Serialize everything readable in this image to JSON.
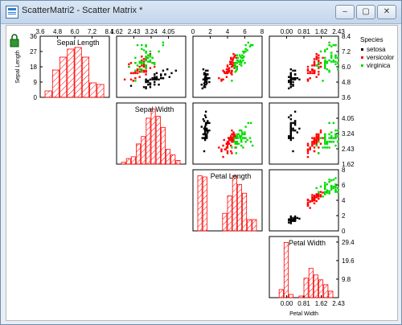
{
  "window": {
    "title": "ScatterMatri2 - Scatter Matrix *",
    "min_label": "–",
    "max_label": "▢",
    "close_label": "✕"
  },
  "icons": {
    "app": "scatter-matrix-icon",
    "lock": "lock-icon"
  },
  "colors": {
    "setosa": "#000000",
    "versicolor": "#ff0000",
    "virginica": "#00dd00",
    "hist": "#ff0000"
  },
  "chart_data": {
    "type": "scatter",
    "title": "",
    "variables": [
      {
        "name": "Sepal Length",
        "range": [
          3.6,
          8.4
        ],
        "ticks": [
          "3.6",
          "4.8",
          "6.0",
          "7.2",
          "8.4"
        ],
        "hist_ticks": [
          "0",
          "9",
          "18",
          "27",
          "36"
        ],
        "hist_max": 36,
        "hist_values": [
          4,
          17,
          25,
          30,
          31,
          25,
          9,
          8
        ]
      },
      {
        "name": "Sepal Width",
        "range": [
          1.62,
          4.86
        ],
        "ticks": [
          "1.62",
          "2.43",
          "3.24",
          "4.05"
        ],
        "hist_values": [
          1,
          3,
          4,
          11,
          15,
          25,
          30,
          26,
          20,
          8,
          5,
          2
        ]
      },
      {
        "name": "Petal Length",
        "range": [
          0,
          8
        ],
        "ticks": [
          "0",
          "2",
          "4",
          "6",
          "8"
        ],
        "hist_values": [
          44,
          43,
          0,
          0,
          0,
          14,
          28,
          44,
          37,
          30,
          9,
          9
        ]
      },
      {
        "name": "Petal Width",
        "range": [
          -0.81,
          2.43
        ],
        "ticks": [
          "0.00",
          "0.81",
          "1.62",
          "2.43"
        ],
        "right_ticks": [
          "9.8",
          "19.6",
          "29.4"
        ],
        "xlabel": "Petal Width",
        "hist_values": [
          0,
          5,
          34,
          2,
          0,
          1,
          12,
          18,
          14,
          11,
          8,
          4
        ]
      }
    ],
    "species": [
      {
        "name": "setosa",
        "color": "#000000",
        "points": [
          [
            5.1,
            3.5,
            1.4,
            0.2
          ],
          [
            4.9,
            3.0,
            1.4,
            0.2
          ],
          [
            4.7,
            3.2,
            1.3,
            0.2
          ],
          [
            4.6,
            3.1,
            1.5,
            0.2
          ],
          [
            5.0,
            3.6,
            1.4,
            0.2
          ],
          [
            5.4,
            3.9,
            1.7,
            0.4
          ],
          [
            4.6,
            3.4,
            1.4,
            0.3
          ],
          [
            5.0,
            3.4,
            1.5,
            0.2
          ],
          [
            4.4,
            2.9,
            1.4,
            0.2
          ],
          [
            4.9,
            3.1,
            1.5,
            0.1
          ],
          [
            5.4,
            3.7,
            1.5,
            0.2
          ],
          [
            4.8,
            3.4,
            1.6,
            0.2
          ],
          [
            4.8,
            3.0,
            1.4,
            0.1
          ],
          [
            4.3,
            3.0,
            1.1,
            0.1
          ],
          [
            5.8,
            4.0,
            1.2,
            0.2
          ],
          [
            5.7,
            4.4,
            1.5,
            0.4
          ],
          [
            5.4,
            3.9,
            1.3,
            0.4
          ],
          [
            5.1,
            3.5,
            1.4,
            0.3
          ],
          [
            5.7,
            3.8,
            1.7,
            0.3
          ],
          [
            5.1,
            3.8,
            1.5,
            0.3
          ],
          [
            5.4,
            3.4,
            1.7,
            0.2
          ],
          [
            5.1,
            3.7,
            1.5,
            0.4
          ],
          [
            4.6,
            3.6,
            1.0,
            0.2
          ],
          [
            5.1,
            3.3,
            1.7,
            0.5
          ],
          [
            4.8,
            3.4,
            1.9,
            0.2
          ],
          [
            5.0,
            3.0,
            1.6,
            0.2
          ],
          [
            5.0,
            3.4,
            1.6,
            0.4
          ],
          [
            5.2,
            3.5,
            1.5,
            0.2
          ],
          [
            5.2,
            3.4,
            1.4,
            0.2
          ],
          [
            4.7,
            3.2,
            1.6,
            0.2
          ],
          [
            4.8,
            3.1,
            1.6,
            0.2
          ],
          [
            5.4,
            3.4,
            1.5,
            0.4
          ],
          [
            5.2,
            4.1,
            1.5,
            0.1
          ],
          [
            5.5,
            4.2,
            1.4,
            0.2
          ],
          [
            4.9,
            3.1,
            1.5,
            0.2
          ],
          [
            5.0,
            3.2,
            1.2,
            0.2
          ],
          [
            5.5,
            3.5,
            1.3,
            0.2
          ],
          [
            4.4,
            3.0,
            1.3,
            0.2
          ],
          [
            5.1,
            3.4,
            1.5,
            0.2
          ],
          [
            5.0,
            3.5,
            1.3,
            0.3
          ],
          [
            4.5,
            2.3,
            1.3,
            0.3
          ],
          [
            4.4,
            3.2,
            1.3,
            0.2
          ],
          [
            5.0,
            3.5,
            1.6,
            0.6
          ],
          [
            5.1,
            3.8,
            1.9,
            0.4
          ],
          [
            4.8,
            3.0,
            1.4,
            0.3
          ],
          [
            5.1,
            3.8,
            1.6,
            0.2
          ],
          [
            4.6,
            3.2,
            1.4,
            0.2
          ],
          [
            5.3,
            3.7,
            1.5,
            0.2
          ],
          [
            5.0,
            3.3,
            1.4,
            0.2
          ]
        ]
      },
      {
        "name": "versicolor",
        "color": "#ff0000",
        "points": [
          [
            7.0,
            3.2,
            4.7,
            1.4
          ],
          [
            6.4,
            3.2,
            4.5,
            1.5
          ],
          [
            6.9,
            3.1,
            4.9,
            1.5
          ],
          [
            5.5,
            2.3,
            4.0,
            1.3
          ],
          [
            6.5,
            2.8,
            4.6,
            1.5
          ],
          [
            5.7,
            2.8,
            4.5,
            1.3
          ],
          [
            6.3,
            3.3,
            4.7,
            1.6
          ],
          [
            4.9,
            2.4,
            3.3,
            1.0
          ],
          [
            6.6,
            2.9,
            4.6,
            1.3
          ],
          [
            5.2,
            2.7,
            3.9,
            1.4
          ],
          [
            5.0,
            2.0,
            3.5,
            1.0
          ],
          [
            5.9,
            3.0,
            4.2,
            1.5
          ],
          [
            6.0,
            2.2,
            4.0,
            1.0
          ],
          [
            6.1,
            2.9,
            4.7,
            1.4
          ],
          [
            5.6,
            2.9,
            3.6,
            1.3
          ],
          [
            6.7,
            3.1,
            4.4,
            1.4
          ],
          [
            5.6,
            3.0,
            4.5,
            1.5
          ],
          [
            5.8,
            2.7,
            4.1,
            1.0
          ],
          [
            6.2,
            2.2,
            4.5,
            1.5
          ],
          [
            5.6,
            2.5,
            3.9,
            1.1
          ],
          [
            5.9,
            3.2,
            4.8,
            1.8
          ],
          [
            6.1,
            2.8,
            4.0,
            1.3
          ],
          [
            6.3,
            2.5,
            4.9,
            1.5
          ],
          [
            6.1,
            2.8,
            4.7,
            1.2
          ],
          [
            6.4,
            2.9,
            4.3,
            1.3
          ],
          [
            6.6,
            3.0,
            4.4,
            1.4
          ],
          [
            6.8,
            2.8,
            4.8,
            1.4
          ],
          [
            6.7,
            3.0,
            5.0,
            1.7
          ],
          [
            6.0,
            2.9,
            4.5,
            1.5
          ],
          [
            5.7,
            2.6,
            3.5,
            1.0
          ],
          [
            5.5,
            2.4,
            3.8,
            1.1
          ],
          [
            5.5,
            2.4,
            3.7,
            1.0
          ],
          [
            5.8,
            2.7,
            3.9,
            1.2
          ],
          [
            6.0,
            2.7,
            5.1,
            1.6
          ],
          [
            5.4,
            3.0,
            4.5,
            1.5
          ],
          [
            6.0,
            3.4,
            4.5,
            1.6
          ],
          [
            6.7,
            3.1,
            4.7,
            1.5
          ],
          [
            6.3,
            2.3,
            4.4,
            1.3
          ],
          [
            5.6,
            3.0,
            4.1,
            1.3
          ],
          [
            5.5,
            2.5,
            4.0,
            1.3
          ],
          [
            5.5,
            2.6,
            4.4,
            1.2
          ],
          [
            6.1,
            3.0,
            4.6,
            1.4
          ],
          [
            5.8,
            2.6,
            4.0,
            1.2
          ],
          [
            5.0,
            2.3,
            3.3,
            1.0
          ],
          [
            5.6,
            2.7,
            4.2,
            1.3
          ],
          [
            5.7,
            3.0,
            4.2,
            1.2
          ],
          [
            5.7,
            2.9,
            4.2,
            1.3
          ],
          [
            6.2,
            2.9,
            4.3,
            1.3
          ],
          [
            5.1,
            2.5,
            3.0,
            1.1
          ],
          [
            5.7,
            2.8,
            4.1,
            1.3
          ]
        ]
      },
      {
        "name": "virginica",
        "color": "#00dd00",
        "points": [
          [
            6.3,
            3.3,
            6.0,
            2.5
          ],
          [
            5.8,
            2.7,
            5.1,
            1.9
          ],
          [
            7.1,
            3.0,
            5.9,
            2.1
          ],
          [
            6.3,
            2.9,
            5.6,
            1.8
          ],
          [
            6.5,
            3.0,
            5.8,
            2.2
          ],
          [
            7.6,
            3.0,
            6.6,
            2.1
          ],
          [
            4.9,
            2.5,
            4.5,
            1.7
          ],
          [
            7.3,
            2.9,
            6.3,
            1.8
          ],
          [
            6.7,
            2.5,
            5.8,
            1.8
          ],
          [
            7.2,
            3.6,
            6.1,
            2.5
          ],
          [
            6.5,
            3.2,
            5.1,
            2.0
          ],
          [
            6.4,
            2.7,
            5.3,
            1.9
          ],
          [
            6.8,
            3.0,
            5.5,
            2.1
          ],
          [
            5.7,
            2.5,
            5.0,
            2.0
          ],
          [
            5.8,
            2.8,
            5.1,
            2.4
          ],
          [
            6.4,
            3.2,
            5.3,
            2.3
          ],
          [
            6.5,
            3.0,
            5.5,
            1.8
          ],
          [
            7.7,
            3.8,
            6.7,
            2.2
          ],
          [
            7.7,
            2.6,
            6.9,
            2.3
          ],
          [
            6.0,
            2.2,
            5.0,
            1.5
          ],
          [
            6.9,
            3.2,
            5.7,
            2.3
          ],
          [
            5.6,
            2.8,
            4.9,
            2.0
          ],
          [
            7.7,
            2.8,
            6.7,
            2.0
          ],
          [
            6.3,
            2.7,
            4.9,
            1.8
          ],
          [
            6.7,
            3.3,
            5.7,
            2.1
          ],
          [
            7.2,
            3.2,
            6.0,
            1.8
          ],
          [
            6.2,
            2.8,
            4.8,
            1.8
          ],
          [
            6.1,
            3.0,
            4.9,
            1.8
          ],
          [
            6.4,
            2.8,
            5.6,
            2.1
          ],
          [
            7.2,
            3.0,
            5.8,
            1.6
          ],
          [
            7.4,
            2.8,
            6.1,
            1.9
          ],
          [
            7.9,
            3.8,
            6.4,
            2.0
          ],
          [
            6.4,
            2.8,
            5.6,
            2.2
          ],
          [
            6.3,
            2.8,
            5.1,
            1.5
          ],
          [
            6.1,
            2.6,
            5.6,
            1.4
          ],
          [
            7.7,
            3.0,
            6.1,
            2.3
          ],
          [
            6.3,
            3.4,
            5.6,
            2.4
          ],
          [
            6.4,
            3.1,
            5.5,
            1.8
          ],
          [
            6.0,
            3.0,
            4.8,
            1.8
          ],
          [
            6.9,
            3.1,
            5.4,
            2.1
          ],
          [
            6.7,
            3.1,
            5.6,
            2.4
          ],
          [
            6.9,
            3.1,
            5.1,
            2.3
          ],
          [
            6.8,
            3.2,
            5.9,
            2.3
          ],
          [
            6.7,
            3.3,
            5.7,
            2.5
          ],
          [
            6.7,
            3.0,
            5.2,
            2.3
          ],
          [
            6.3,
            2.5,
            5.0,
            1.9
          ],
          [
            6.5,
            3.0,
            5.2,
            2.0
          ],
          [
            6.2,
            3.4,
            5.4,
            2.3
          ],
          [
            5.9,
            3.0,
            5.1,
            1.8
          ]
        ]
      }
    ],
    "legend": {
      "title": "Species",
      "placement": "right",
      "entries": [
        "setosa",
        "versicolor",
        "virginica"
      ]
    }
  }
}
